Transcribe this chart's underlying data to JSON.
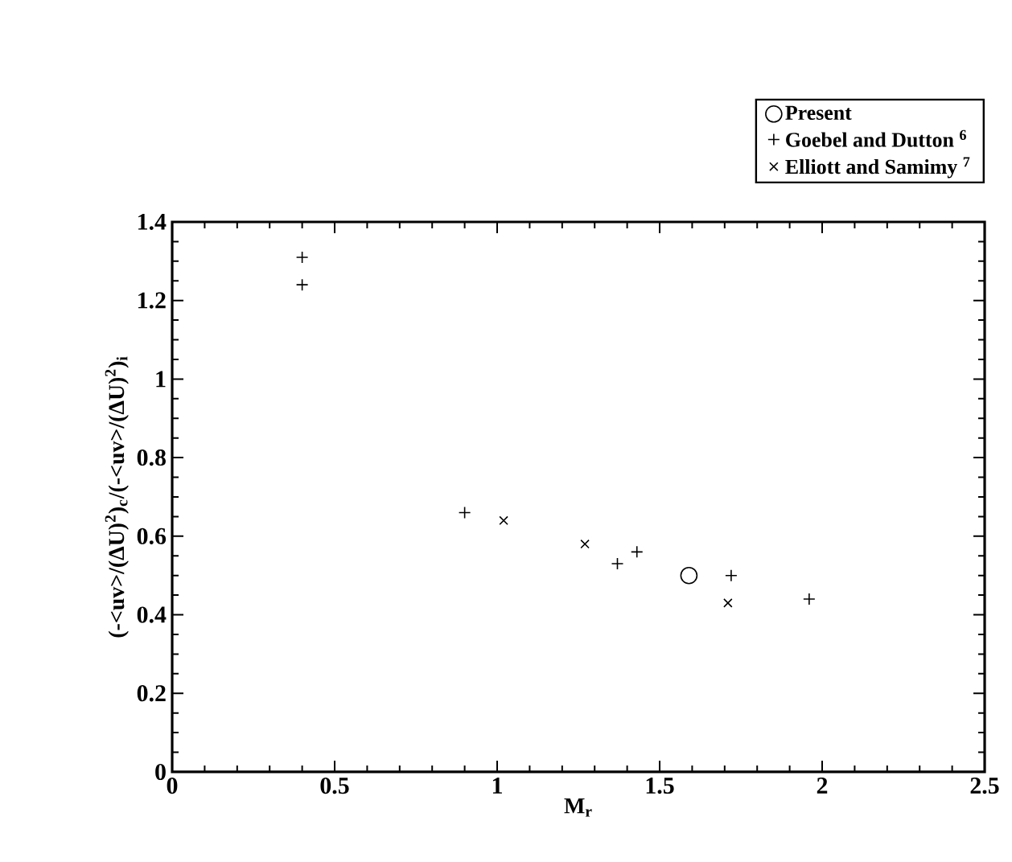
{
  "chart_data": {
    "type": "scatter",
    "xlabel": "M$_{r}$",
    "ylabel": "(-<uv>/(ΔU)$^{2}$)$_{c}$/(-<uv>/(ΔU)$^{2}$)$_{i}$",
    "xlim": [
      0,
      2.5
    ],
    "xticks": [
      0,
      0.5,
      1,
      1.5,
      2,
      2.5
    ],
    "ylim": [
      0,
      1.4
    ],
    "yticks": [
      0,
      0.2,
      0.4,
      0.6,
      0.8,
      1,
      1.2,
      1.4
    ],
    "legend": "top right",
    "grid": false,
    "series": [
      {
        "name": "Present",
        "color": "#000000",
        "marker": "circle",
        "x": [
          1.59
        ],
        "values": [
          0.5
        ]
      },
      {
        "name": "Goebel and Dutton $^{6}$",
        "color": "#000000",
        "marker": "plus",
        "x": [
          0.4,
          0.4,
          0.9,
          1.37,
          1.43,
          1.72,
          1.96
        ],
        "values": [
          1.31,
          1.24,
          0.66,
          0.53,
          0.56,
          0.5,
          0.44
        ]
      },
      {
        "name": "Elliott and Samimy $^{7}$",
        "color": "#000000",
        "marker": "cross",
        "x": [
          1.02,
          1.27,
          1.71
        ],
        "values": [
          0.64,
          0.58,
          0.43
        ]
      }
    ]
  }
}
